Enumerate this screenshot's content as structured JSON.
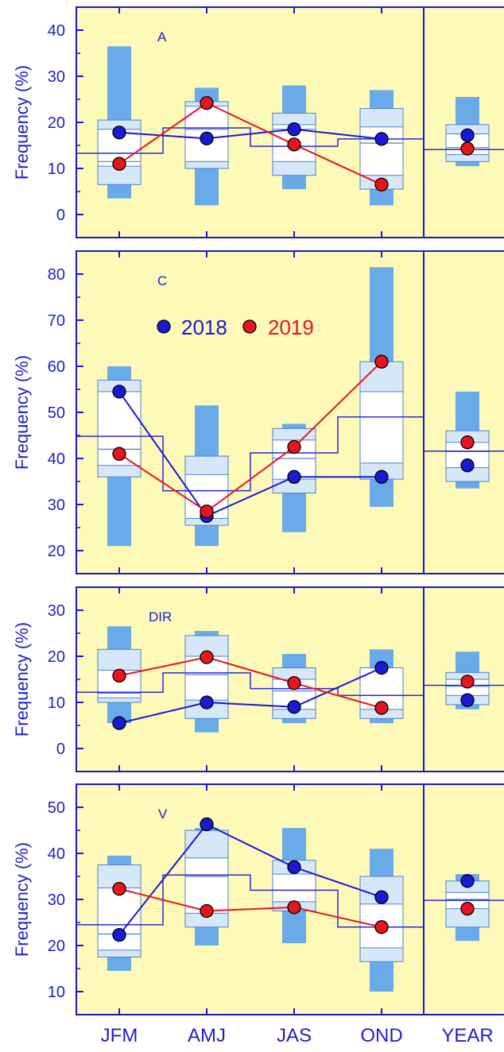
{
  "colors": {
    "panel_bg": "#fdf9b8",
    "axis": "#1a1acc",
    "outer_box": "#6aaae8",
    "inner_box": "#d6e8f8",
    "median_box": "#ffffff",
    "mean_line": "#2b2bd0",
    "s2018": "#1a1ad6",
    "s2019": "#e8141e"
  },
  "chart_data": [
    {
      "type": "box",
      "panel_label": "A",
      "ylabel": "Frequency (%)",
      "ylim": [
        -5,
        45
      ],
      "yticks": [
        0,
        10,
        20,
        30,
        40
      ],
      "categories": [
        "JFM",
        "AMJ",
        "JAS",
        "OND",
        "YEAR"
      ],
      "boxes": [
        {
          "min": 3.5,
          "p10": 6.5,
          "p25": 10.5,
          "median": 11.5,
          "p75": 18.5,
          "p90": 20.5,
          "max": 36.5
        },
        {
          "min": 2.0,
          "p10": 10.0,
          "p25": 11.5,
          "median": 18.5,
          "p75": 23.5,
          "p90": 24.5,
          "max": 27.5
        },
        {
          "min": 5.5,
          "p10": 8.5,
          "p25": 11.5,
          "median": 18.5,
          "p75": 19.5,
          "p90": 22.0,
          "max": 28.0
        },
        {
          "min": 2.0,
          "p10": 5.5,
          "p25": 8.5,
          "median": 15.5,
          "p75": 19.0,
          "p90": 23.0,
          "max": 27.0
        },
        {
          "min": 10.5,
          "p10": 11.5,
          "p25": 13.0,
          "median": 14.5,
          "p75": 17.5,
          "p90": 19.5,
          "max": 25.5
        }
      ],
      "means": [
        13.3,
        18.8,
        14.8,
        16.4,
        14.1
      ],
      "series": [
        {
          "name": "2018",
          "values": [
            17.8,
            16.5,
            18.5,
            16.4,
            17.2
          ]
        },
        {
          "name": "2019",
          "values": [
            11.0,
            24.2,
            15.2,
            6.5,
            14.3
          ]
        }
      ]
    },
    {
      "type": "box",
      "panel_label": "C",
      "ylabel": "Frequency (%)",
      "ylim": [
        15,
        85
      ],
      "yticks": [
        20,
        30,
        40,
        50,
        60,
        70,
        80
      ],
      "categories": [
        "JFM",
        "AMJ",
        "JAS",
        "OND",
        "YEAR"
      ],
      "boxes": [
        {
          "min": 21.0,
          "p10": 36.0,
          "p25": 38.5,
          "median": 42.0,
          "p75": 54.5,
          "p90": 57.0,
          "max": 60.0
        },
        {
          "min": 21.0,
          "p10": 25.5,
          "p25": 27.0,
          "median": 33.0,
          "p75": 36.5,
          "p90": 40.5,
          "max": 51.5
        },
        {
          "min": 24.0,
          "p10": 32.5,
          "p25": 35.5,
          "median": 40.0,
          "p75": 44.0,
          "p90": 46.5,
          "max": 47.5
        },
        {
          "min": 29.5,
          "p10": 35.5,
          "p25": 39.0,
          "median": 49.0,
          "p75": 54.5,
          "p90": 61.0,
          "max": 81.5
        },
        {
          "min": 33.5,
          "p10": 35.0,
          "p25": 38.0,
          "median": 41.5,
          "p75": 43.5,
          "p90": 46.0,
          "max": 54.5
        }
      ],
      "means": [
        44.8,
        33.0,
        41.2,
        49.0,
        41.6
      ],
      "legend": [
        {
          "label": "2018",
          "color": "#1a1ad6"
        },
        {
          "label": "2019",
          "color": "#e8141e"
        }
      ],
      "series": [
        {
          "name": "2018",
          "values": [
            54.5,
            27.5,
            36.0,
            36.0,
            38.5
          ]
        },
        {
          "name": "2019",
          "values": [
            41.0,
            28.5,
            42.5,
            61.0,
            43.5
          ]
        }
      ]
    },
    {
      "type": "box",
      "panel_label": "DIR",
      "ylabel": "Frequency (%)",
      "ylim": [
        -5,
        35
      ],
      "yticks": [
        0,
        10,
        20,
        30
      ],
      "categories": [
        "JFM",
        "AMJ",
        "JAS",
        "OND",
        "YEAR"
      ],
      "boxes": [
        {
          "min": 5.5,
          "p10": 10.0,
          "p25": 11.0,
          "median": 12.0,
          "p75": 17.0,
          "p90": 21.5,
          "max": 26.5
        },
        {
          "min": 3.5,
          "p10": 6.5,
          "p25": 10.5,
          "median": 16.0,
          "p75": 20.0,
          "p90": 24.5,
          "max": 25.5
        },
        {
          "min": 5.5,
          "p10": 6.5,
          "p25": 8.5,
          "median": 12.5,
          "p75": 15.0,
          "p90": 17.5,
          "max": 20.5
        },
        {
          "min": 5.5,
          "p10": 6.5,
          "p25": 8.5,
          "median": 11.5,
          "p75": 17.5,
          "p90": 17.5,
          "max": 21.5
        },
        {
          "min": 8.5,
          "p10": 9.5,
          "p25": 11.5,
          "median": 13.5,
          "p75": 15.0,
          "p90": 16.5,
          "max": 21.0
        }
      ],
      "means": [
        12.2,
        16.4,
        13.0,
        11.5,
        13.7
      ],
      "series": [
        {
          "name": "2018",
          "values": [
            5.5,
            10.0,
            9.0,
            17.5,
            10.5
          ]
        },
        {
          "name": "2019",
          "values": [
            15.8,
            19.8,
            14.2,
            8.8,
            14.5
          ]
        }
      ]
    },
    {
      "type": "box",
      "panel_label": "V",
      "ylabel": "Frequency (%)",
      "ylim": [
        5,
        55
      ],
      "yticks": [
        10,
        20,
        30,
        40,
        50
      ],
      "categories": [
        "JFM",
        "AMJ",
        "JAS",
        "OND",
        "YEAR"
      ],
      "boxes": [
        {
          "min": 14.5,
          "p10": 17.5,
          "p25": 19.0,
          "median": 22.5,
          "p75": 32.5,
          "p90": 37.5,
          "max": 39.5
        },
        {
          "min": 20.0,
          "p10": 24.0,
          "p25": 27.0,
          "median": 35.0,
          "p75": 39.0,
          "p90": 45.0,
          "max": 45.5
        },
        {
          "min": 20.5,
          "p10": 27.5,
          "p25": 29.5,
          "median": 32.0,
          "p75": 35.5,
          "p90": 38.5,
          "max": 45.5
        },
        {
          "min": 10.0,
          "p10": 16.5,
          "p25": 19.5,
          "median": 24.0,
          "p75": 29.0,
          "p90": 35.0,
          "max": 41.0
        },
        {
          "min": 21.0,
          "p10": 24.0,
          "p25": 28.0,
          "median": 30.0,
          "p75": 31.5,
          "p90": 34.0,
          "max": 35.5
        }
      ],
      "means": [
        24.5,
        35.3,
        32.0,
        24.0,
        29.8
      ],
      "series": [
        {
          "name": "2018",
          "values": [
            22.3,
            46.3,
            37.0,
            30.5,
            34.0
          ]
        },
        {
          "name": "2019",
          "values": [
            32.3,
            27.5,
            28.3,
            24.0,
            28.0
          ]
        }
      ]
    }
  ]
}
